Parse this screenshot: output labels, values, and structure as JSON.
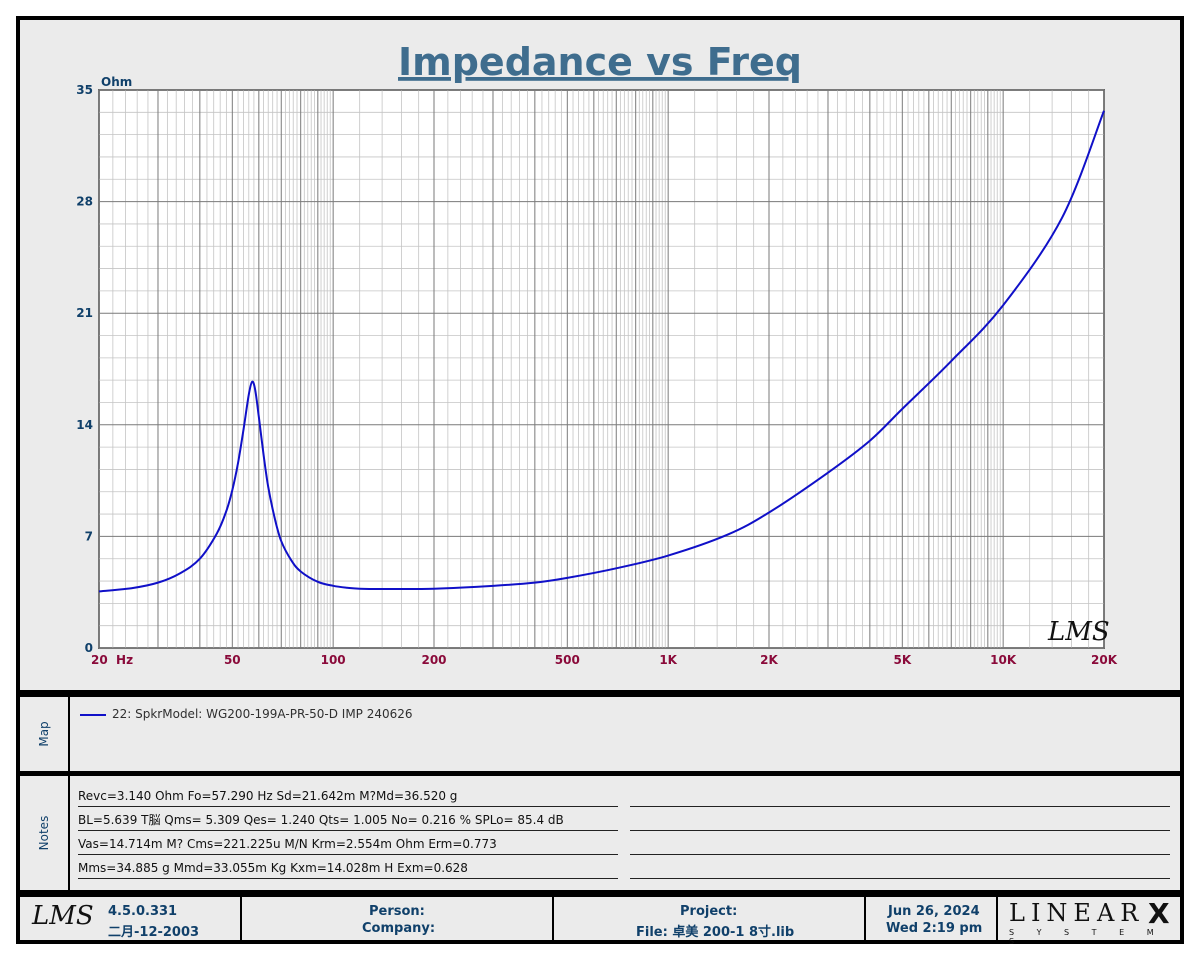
{
  "chart_data": {
    "type": "line",
    "title": "Impedance vs Freq",
    "ylabel": "Ohm",
    "x_scale": "log",
    "xlim": [
      20,
      20000
    ],
    "ylim": [
      0,
      35
    ],
    "yticks": [
      0,
      7,
      14,
      21,
      28,
      35
    ],
    "xtick_labels": [
      {
        "value": 20,
        "label": "20  Hz"
      },
      {
        "value": 50,
        "label": "50"
      },
      {
        "value": 100,
        "label": "100"
      },
      {
        "value": 200,
        "label": "200"
      },
      {
        "value": 500,
        "label": "500"
      },
      {
        "value": 1000,
        "label": "1K"
      },
      {
        "value": 2000,
        "label": "2K"
      },
      {
        "value": 5000,
        "label": "5K"
      },
      {
        "value": 10000,
        "label": "10K"
      },
      {
        "value": 20000,
        "label": "20K"
      }
    ],
    "grid": true,
    "watermark": "LMS",
    "series": [
      {
        "name": "22: SpkrModel: WG200-199A-PR-50-D IMP 240626",
        "color": "#1010c8",
        "x": [
          20,
          25,
          30,
          35,
          40,
          45,
          48,
          50,
          52,
          54,
          56,
          57.3,
          58.5,
          60,
          62,
          64,
          67,
          70,
          75,
          80,
          90,
          100,
          110,
          120,
          150,
          200,
          300,
          400,
          500,
          700,
          1000,
          1500,
          2000,
          3000,
          4000,
          5000,
          7000,
          10000,
          15000,
          20000
        ],
        "y": [
          3.55,
          3.75,
          4.1,
          4.7,
          5.6,
          7.2,
          8.6,
          9.9,
          11.6,
          13.7,
          15.9,
          16.7,
          16.2,
          14.5,
          12.1,
          10.1,
          8.1,
          6.7,
          5.5,
          4.8,
          4.15,
          3.9,
          3.78,
          3.72,
          3.7,
          3.72,
          3.9,
          4.1,
          4.4,
          5.0,
          5.8,
          7.1,
          8.5,
          11.0,
          13.0,
          15.0,
          18.0,
          21.5,
          27.0,
          33.7
        ]
      }
    ]
  },
  "map": {
    "label": "Map",
    "legend": "22: SpkrModel: WG200-199A-PR-50-D IMP 240626"
  },
  "notes": {
    "label": "Notes",
    "lines": [
      "Revc=3.140 Ohm  Fo=57.290 Hz  Sd=21.642m M?Md=36.520 g",
      "BL=5.639 T脳  Qms= 5.309  Qes= 1.240  Qts= 1.005  No= 0.216 %  SPLo= 85.4 dB",
      "Vas=14.714m M? Cms=221.225u M/N  Krm=2.554m Ohm  Erm=0.773",
      "Mms=34.885 g  Mmd=33.055m Kg  Kxm=14.028m H  Exm=0.628"
    ]
  },
  "footer": {
    "logo": "LMS",
    "version": "4.5.0.331",
    "version_date": "二月-12-2003",
    "person_label": "Person:",
    "company_label": "Company:",
    "project_label": "Project:",
    "file_label": "File: 卓美 200-1 8寸.lib",
    "date": "Jun 26, 2024",
    "time": "Wed  2:19 pm",
    "brand": "LINEAR",
    "brand_x": "X",
    "brand_sub": "S Y S T E M S"
  },
  "colors": {
    "title": "#3f6d8e",
    "axis_label": "#10406a",
    "x_tick": "#8a0a3a",
    "curve": "#1010c8",
    "grid": "#8c8c8c",
    "plot_bg": "#ffffff",
    "panel_bg": "#ebebeb"
  }
}
